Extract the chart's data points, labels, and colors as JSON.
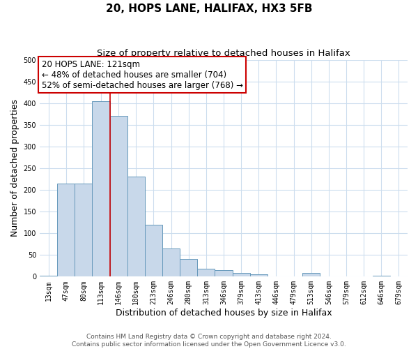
{
  "title": "20, HOPS LANE, HALIFAX, HX3 5FB",
  "subtitle": "Size of property relative to detached houses in Halifax",
  "xlabel": "Distribution of detached houses by size in Halifax",
  "ylabel": "Number of detached properties",
  "bar_labels": [
    "13sqm",
    "47sqm",
    "80sqm",
    "113sqm",
    "146sqm",
    "180sqm",
    "213sqm",
    "246sqm",
    "280sqm",
    "313sqm",
    "346sqm",
    "379sqm",
    "413sqm",
    "446sqm",
    "479sqm",
    "513sqm",
    "546sqm",
    "579sqm",
    "612sqm",
    "646sqm",
    "679sqm"
  ],
  "bar_values": [
    2,
    215,
    215,
    405,
    370,
    230,
    120,
    65,
    40,
    18,
    15,
    8,
    5,
    0,
    0,
    8,
    0,
    0,
    0,
    2,
    0
  ],
  "bar_color": "#c8d8ea",
  "bar_edge_color": "#6699bb",
  "vline_x": 3.5,
  "vline_color": "#cc0000",
  "annotation_text": "20 HOPS LANE: 121sqm\n← 48% of detached houses are smaller (704)\n52% of semi-detached houses are larger (768) →",
  "annotation_box_color": "#ffffff",
  "annotation_box_edge": "#cc0000",
  "ylim": [
    0,
    500
  ],
  "yticks": [
    0,
    50,
    100,
    150,
    200,
    250,
    300,
    350,
    400,
    450,
    500
  ],
  "grid_color": "#ccddee",
  "background_color": "#ffffff",
  "footer_text": "Contains HM Land Registry data © Crown copyright and database right 2024.\nContains public sector information licensed under the Open Government Licence v3.0.",
  "title_fontsize": 11,
  "subtitle_fontsize": 9.5,
  "annotation_fontsize": 8.5,
  "axis_label_fontsize": 9,
  "tick_fontsize": 7,
  "footer_fontsize": 6.5
}
